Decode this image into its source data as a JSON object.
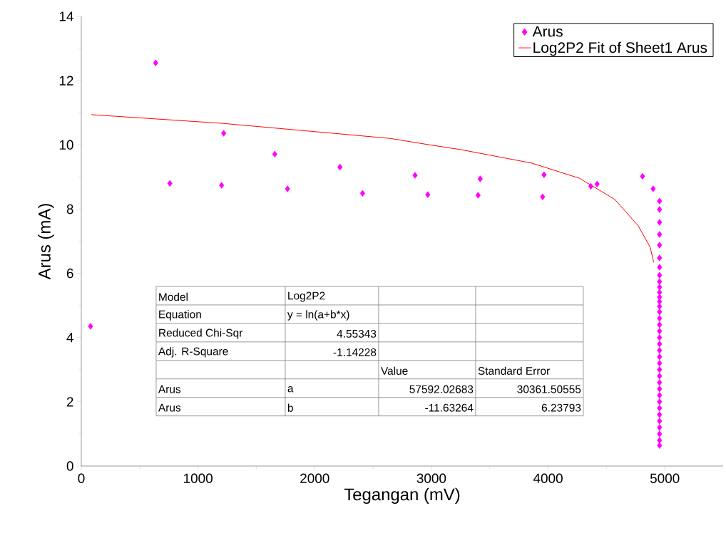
{
  "chart_data": {
    "type": "scatter",
    "xlabel": "Tegangan (mV)",
    "ylabel": "Arus (mA)",
    "xlim": [
      0,
      5500
    ],
    "ylim": [
      0,
      14
    ],
    "xticks": [
      0,
      1000,
      2000,
      3000,
      4000,
      5000
    ],
    "yticks": [
      0,
      2,
      4,
      6,
      8,
      10,
      12,
      14
    ],
    "grid": false,
    "legend": "top right",
    "marker": "diamond",
    "series": [
      {
        "name": "Arus",
        "color": "#ff00ff",
        "x": [
          4955,
          79,
          637,
          759,
          1202,
          1220,
          1658,
          1767,
          2216,
          2410,
          2860,
          2969,
          3400,
          3418,
          3953,
          3965,
          4366,
          4420,
          4809,
          4900,
          4955,
          4955,
          4955,
          4955,
          4955,
          4955,
          4955,
          4955,
          4955,
          4955,
          4955,
          4955,
          4955,
          4955,
          4955,
          4955,
          4955,
          4955,
          4955,
          4955,
          4955,
          4955,
          4955,
          4955,
          4955,
          4955,
          4955,
          4955,
          4955,
          4955,
          4955,
          4955,
          4955,
          4955,
          4955
        ],
        "values": [
          0.64,
          4.35,
          12.55,
          8.8,
          8.74,
          10.36,
          9.71,
          8.63,
          9.31,
          8.49,
          9.05,
          8.45,
          8.43,
          8.94,
          8.38,
          9.07,
          8.71,
          8.78,
          9.02,
          8.63,
          8.25,
          7.99,
          7.59,
          7.21,
          6.88,
          6.48,
          6.19,
          5.94,
          5.74,
          5.57,
          5.41,
          5.26,
          5.12,
          4.97,
          4.8,
          4.6,
          4.4,
          4.2,
          4.0,
          3.8,
          3.6,
          3.4,
          3.2,
          3.0,
          2.8,
          2.6,
          2.4,
          2.2,
          2.0,
          1.8,
          1.6,
          1.4,
          1.2,
          1.0,
          0.8
        ]
      },
      {
        "name": "Log2P2 Fit of Sheet1 Arus",
        "type": "line",
        "color": "#ff0000",
        "marker": "none",
        "line_style": "solid",
        "x": [
          85,
          1208,
          2647,
          2951,
          3254,
          3862,
          4268,
          4572,
          4772,
          4875,
          4905
        ],
        "values": [
          10.94,
          10.67,
          10.2,
          10.02,
          9.85,
          9.43,
          8.96,
          8.3,
          7.48,
          6.81,
          6.34
        ]
      }
    ],
    "annotations": [
      "Model",
      "Log2P2",
      null,
      null,
      "Equation",
      "y = ln(a+b*x)",
      null,
      null,
      "Reduced Chi-Sqr",
      "4.55343",
      null,
      null,
      "Adj. R-Square",
      "-1.14228",
      null,
      null,
      null,
      null,
      "Value",
      "Standard Error",
      "Arus",
      "a",
      "57592.02683",
      "30361.50555",
      "Arus",
      "b",
      "-11.63264",
      "6.23793"
    ]
  }
}
